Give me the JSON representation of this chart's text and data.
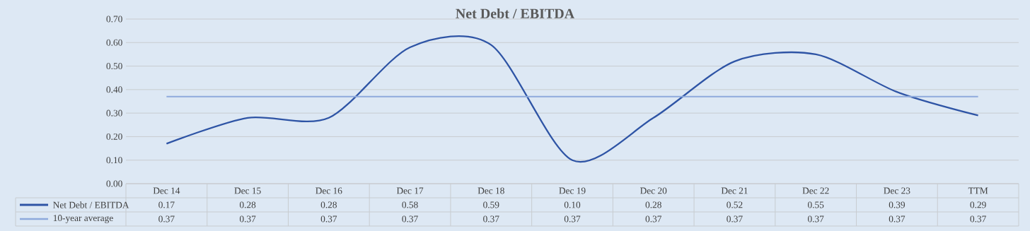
{
  "chart_data": {
    "type": "line",
    "title": "Net Debt / EBITDA",
    "categories": [
      "Dec 14",
      "Dec 15",
      "Dec 16",
      "Dec 17",
      "Dec 18",
      "Dec 19",
      "Dec 20",
      "Dec 21",
      "Dec 22",
      "Dec 23",
      "TTM"
    ],
    "series": [
      {
        "name": "Net Debt / EBITDA",
        "color": "#2e54a5",
        "values": [
          0.17,
          0.28,
          0.28,
          0.58,
          0.59,
          0.1,
          0.28,
          0.52,
          0.55,
          0.39,
          0.29
        ],
        "value_labels": [
          "0.17",
          "0.28",
          "0.28",
          "0.58",
          "0.59",
          "0.10",
          "0.28",
          "0.52",
          "0.55",
          "0.39",
          "0.29"
        ]
      },
      {
        "name": "10-year average",
        "color": "#8eaadc",
        "values": [
          0.37,
          0.37,
          0.37,
          0.37,
          0.37,
          0.37,
          0.37,
          0.37,
          0.37,
          0.37,
          0.37
        ],
        "value_labels": [
          "0.37",
          "0.37",
          "0.37",
          "0.37",
          "0.37",
          "0.37",
          "0.37",
          "0.37",
          "0.37",
          "0.37",
          "0.37"
        ]
      }
    ],
    "ylim": [
      0,
      0.7
    ],
    "yticks": [
      {
        "value": 0,
        "label": "0.00"
      },
      {
        "value": 0.1,
        "label": "0.10"
      },
      {
        "value": 0.2,
        "label": "0.20"
      },
      {
        "value": 0.3,
        "label": "0.30"
      },
      {
        "value": 0.4,
        "label": "0.40"
      },
      {
        "value": 0.5,
        "label": "0.50"
      },
      {
        "value": 0.6,
        "label": "0.60"
      },
      {
        "value": 0.7,
        "label": "0.70"
      }
    ],
    "grid": "y",
    "legend": "bottom"
  }
}
